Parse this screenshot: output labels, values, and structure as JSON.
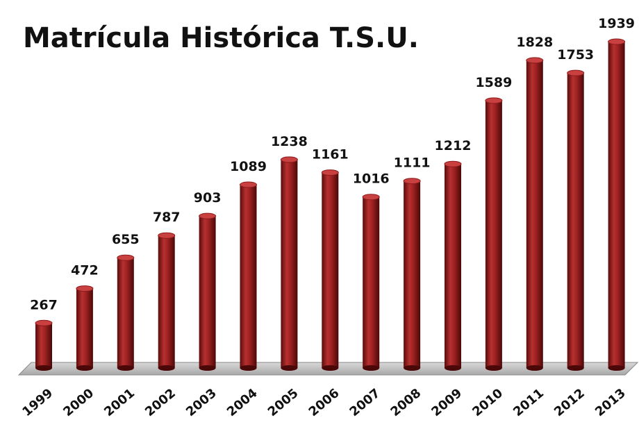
{
  "chart_data": {
    "type": "bar",
    "title": "Matrícula Histórica T.S.U.",
    "categories": [
      "1999",
      "2000",
      "2001",
      "2002",
      "2003",
      "2004",
      "2005",
      "2006",
      "2007",
      "2008",
      "2009",
      "2010",
      "2011",
      "2012",
      "2013"
    ],
    "values": [
      267,
      472,
      655,
      787,
      903,
      1089,
      1238,
      1161,
      1016,
      1111,
      1212,
      1589,
      1828,
      1753,
      1939
    ],
    "color": "#8b1a1a"
  }
}
